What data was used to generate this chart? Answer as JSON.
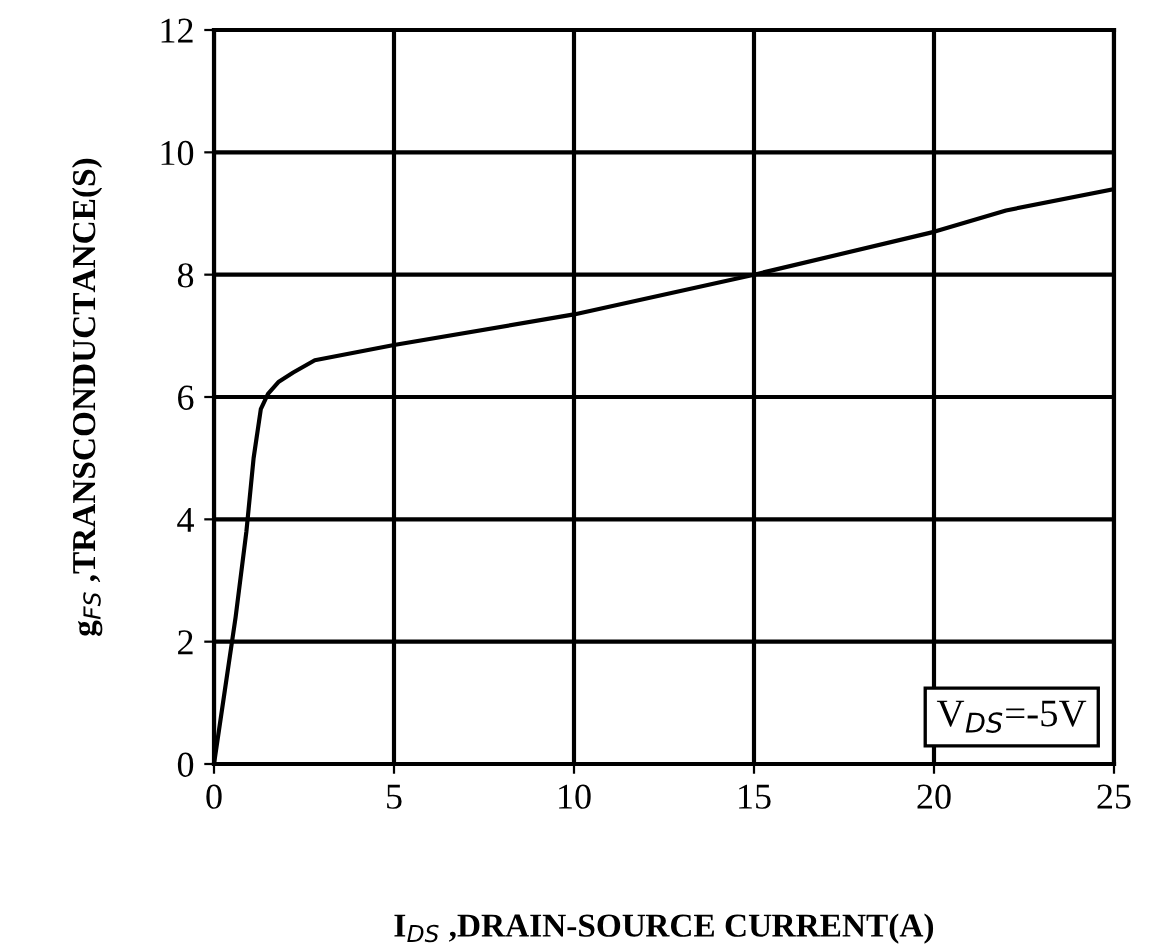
{
  "chart_data": {
    "type": "line",
    "xlabel": "I$_{DS}$ ,DRAIN-SOURCE CURRENT(A)",
    "ylabel": "g$_{FS}$ ,TRANSCONDUCTANCE(S)",
    "annotations": [
      "V$_{DS}$=-5V"
    ],
    "x": [
      0,
      0.3,
      0.6,
      0.9,
      1.1,
      1.3,
      1.5,
      1.8,
      2.2,
      2.8,
      5,
      10,
      15,
      20,
      22,
      25
    ],
    "series": [
      {
        "color": "#000000",
        "values": [
          0,
          1.2,
          2.4,
          3.8,
          5.0,
          5.8,
          6.05,
          6.25,
          6.4,
          6.6,
          6.85,
          7.35,
          8.0,
          8.7,
          9.05,
          9.4
        ]
      }
    ],
    "xlim": [
      0,
      25
    ],
    "ylim": [
      0,
      12
    ],
    "xticks": [
      0,
      5,
      10,
      15,
      20,
      25
    ],
    "yticks": [
      0,
      2,
      4,
      6,
      8,
      10,
      12
    ],
    "grid": true,
    "legend": false,
    "marker": "none",
    "line_style": "solid"
  }
}
